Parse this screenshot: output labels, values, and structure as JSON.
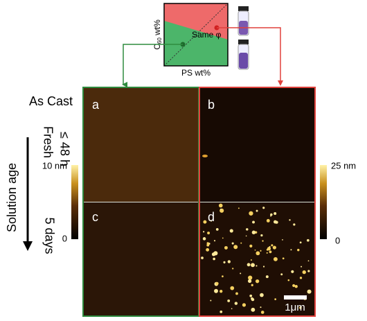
{
  "phase_diagram": {
    "y_label": {
      "main": "C",
      "subscript": "60",
      "suffix": " wt%"
    },
    "x_label": "PS wt%",
    "annotation": "Same φ"
  },
  "row_labels": {
    "as_cast": "As Cast",
    "fresh": "Fresh",
    "fresh_time": "≤ 48 h"
  },
  "solution_age": {
    "label": "Solution age",
    "end": "5 days"
  },
  "panels": [
    "a",
    "b",
    "c",
    "d"
  ],
  "colorbars": [
    {
      "max": "10 nm",
      "min": "0"
    },
    {
      "max": "25 nm",
      "min": "0"
    }
  ],
  "scale_bar": "1μm"
}
